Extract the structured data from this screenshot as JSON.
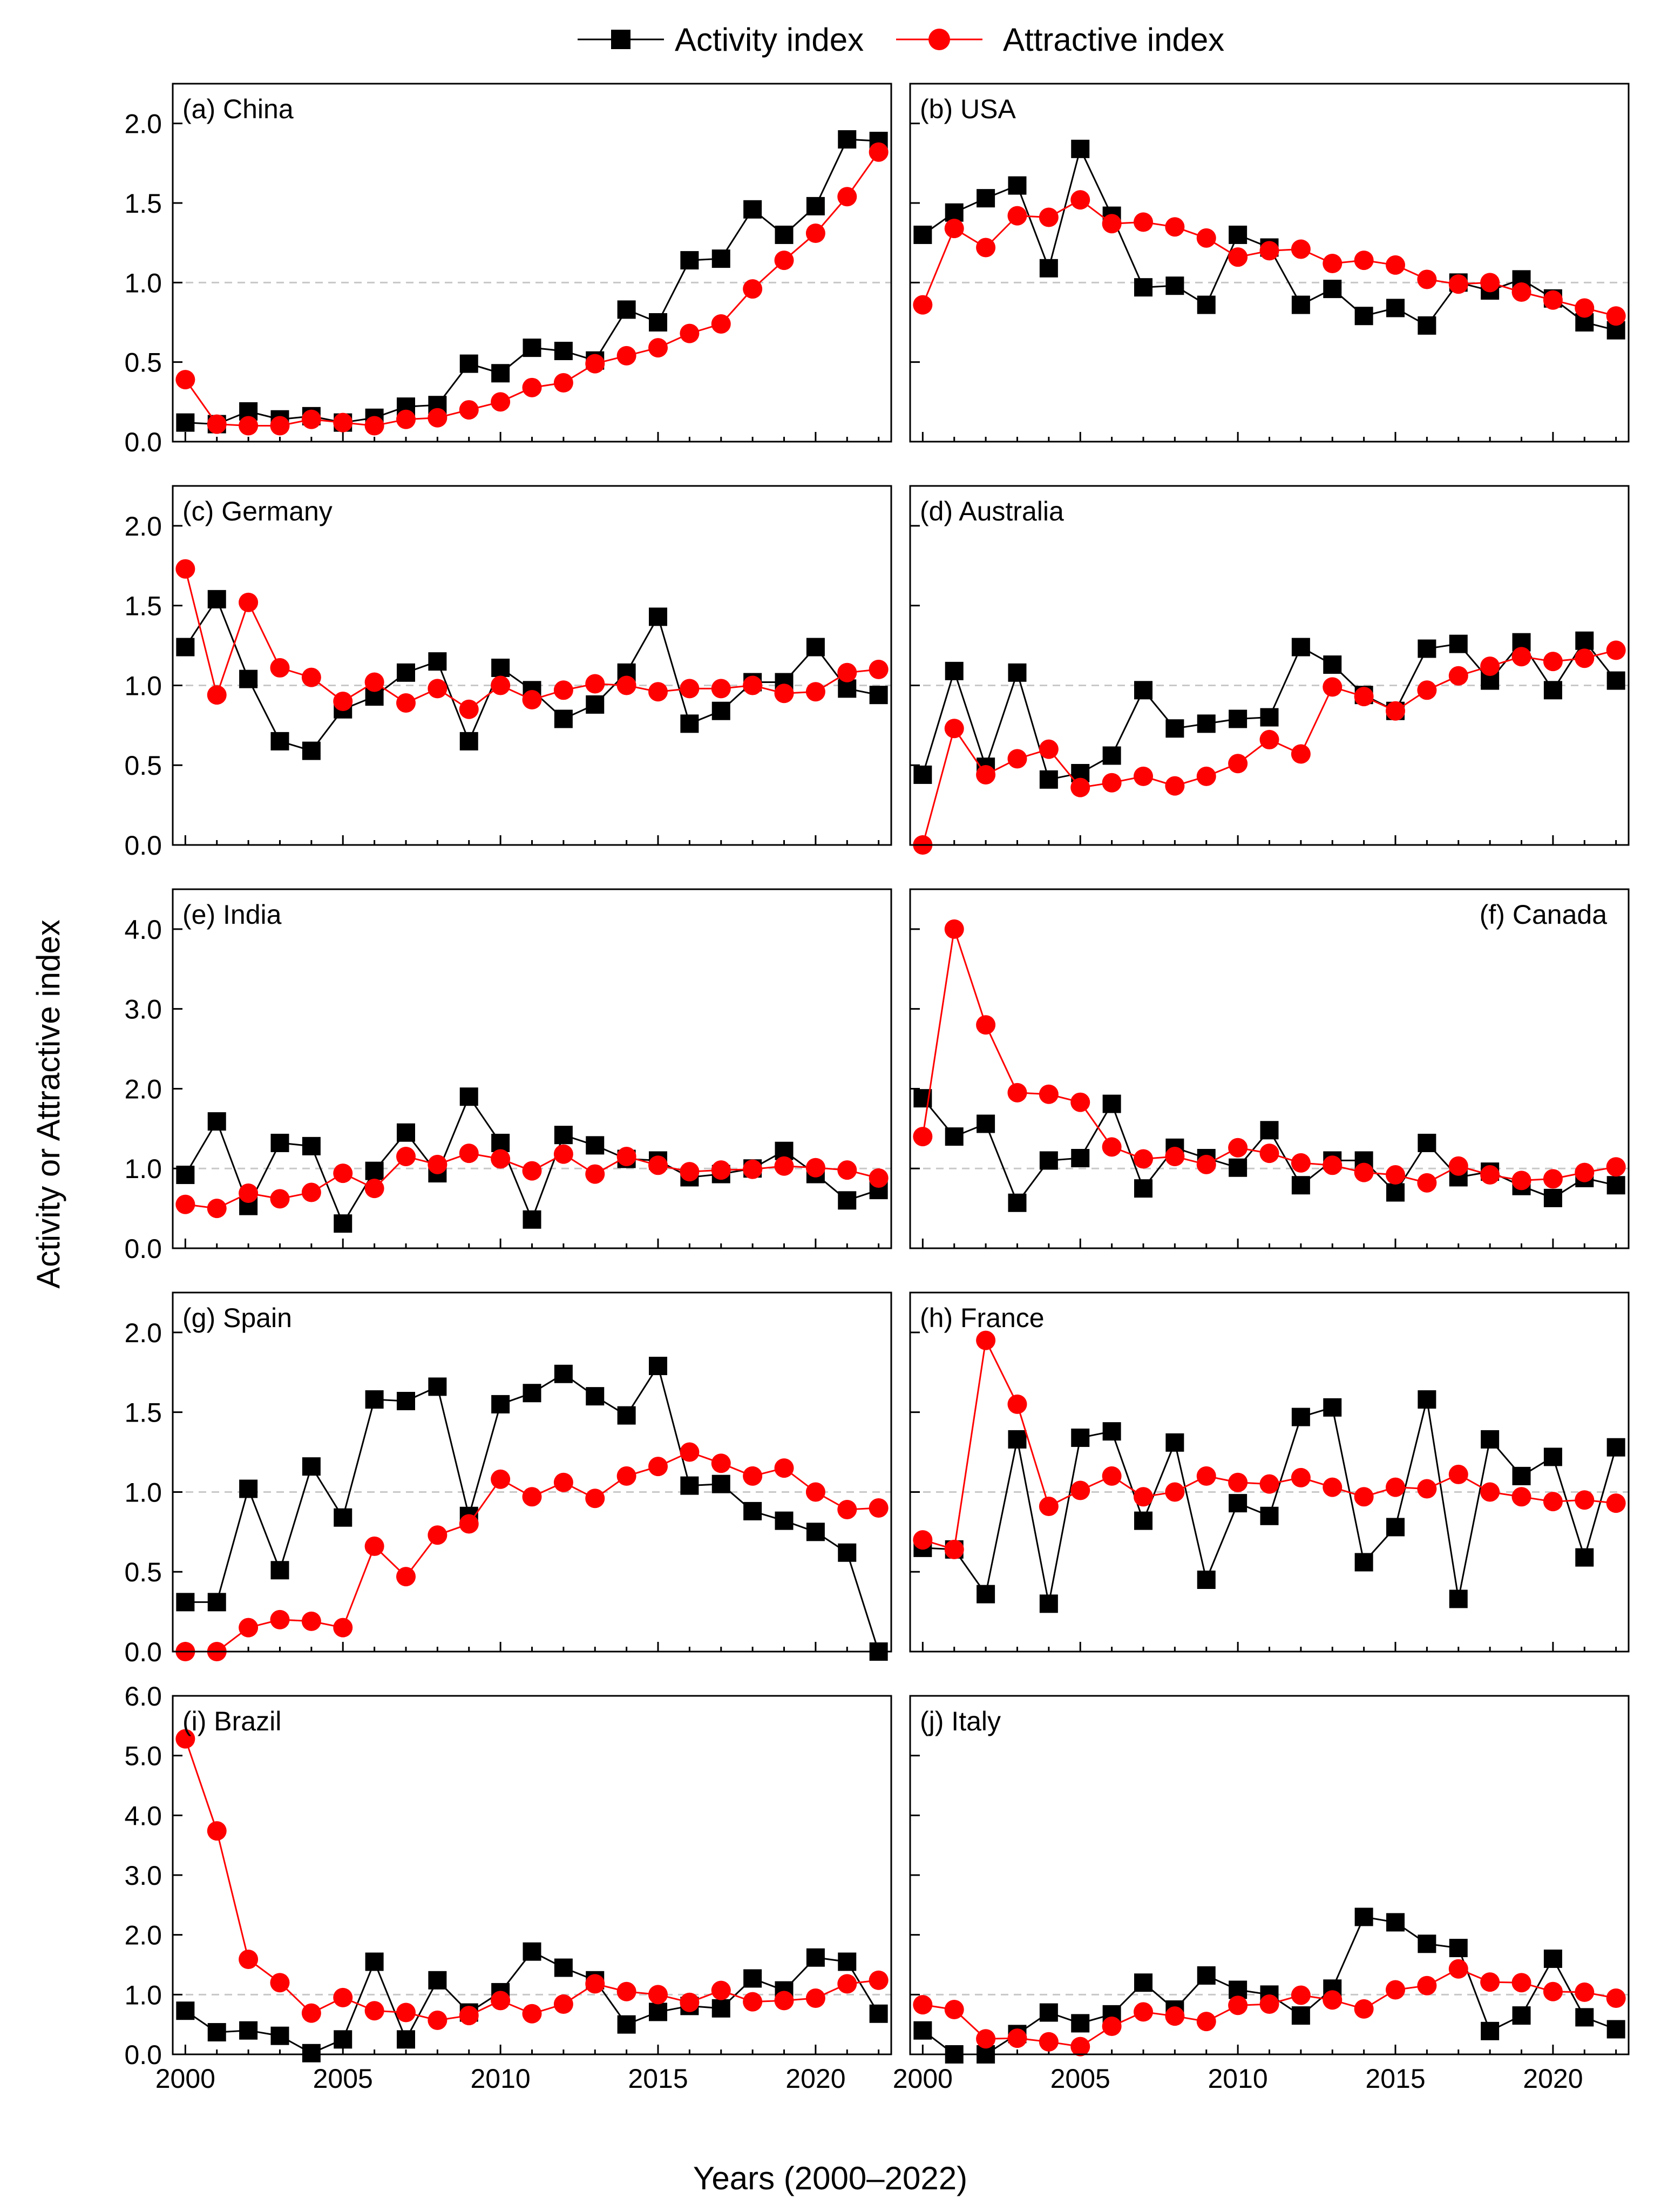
{
  "chart_data": {
    "type": "line",
    "xlabel": "Years (2000–2022)",
    "ylabel": "Activity or Attractive index",
    "legend": {
      "position": "top-center",
      "entries": [
        {
          "name": "Activity index",
          "marker": "square",
          "color": "#000000"
        },
        {
          "name": "Attractive index",
          "marker": "circle",
          "color": "#ff0000"
        }
      ]
    },
    "x": [
      2000,
      2001,
      2002,
      2003,
      2004,
      2005,
      2006,
      2007,
      2008,
      2009,
      2010,
      2011,
      2012,
      2013,
      2014,
      2015,
      2016,
      2017,
      2018,
      2019,
      2020,
      2021,
      2022
    ],
    "xlim": [
      1999.6,
      2022.4
    ],
    "xticks": [
      2000,
      2005,
      2010,
      2015,
      2020
    ],
    "reference_line": 1.0,
    "panels": [
      {
        "id": "a",
        "label": "(a) China",
        "label_pos": "left",
        "ylim": [
          0,
          2.25
        ],
        "yticks": [
          "0.0",
          "0.5",
          "1.0",
          "1.5",
          "2.0"
        ],
        "series": [
          {
            "name": "Activity index",
            "values": [
              0.12,
              0.11,
              0.19,
              0.14,
              0.16,
              0.12,
              0.15,
              0.22,
              0.23,
              0.49,
              0.43,
              0.59,
              0.57,
              0.51,
              0.83,
              0.75,
              1.14,
              1.15,
              1.46,
              1.3,
              1.48,
              1.9,
              1.89
            ]
          },
          {
            "name": "Attractive index",
            "values": [
              0.39,
              0.11,
              0.1,
              0.1,
              0.14,
              0.12,
              0.1,
              0.14,
              0.15,
              0.2,
              0.25,
              0.34,
              0.37,
              0.49,
              0.54,
              0.59,
              0.68,
              0.74,
              0.96,
              1.14,
              1.31,
              1.54,
              1.82
            ]
          }
        ]
      },
      {
        "id": "b",
        "label": "(b) USA",
        "label_pos": "left",
        "ylim": [
          0,
          2.25
        ],
        "yticks": [
          "0.0",
          "0.5",
          "1.0",
          "1.5",
          "2.0"
        ],
        "series": [
          {
            "name": "Activity index",
            "values": [
              1.3,
              1.44,
              1.53,
              1.61,
              1.09,
              1.84,
              1.42,
              0.97,
              0.98,
              0.86,
              1.3,
              1.22,
              0.86,
              0.96,
              0.79,
              0.84,
              0.73,
              1.0,
              0.95,
              1.02,
              0.9,
              0.75,
              0.7
            ]
          },
          {
            "name": "Attractive index",
            "values": [
              0.86,
              1.34,
              1.22,
              1.42,
              1.41,
              1.52,
              1.37,
              1.38,
              1.35,
              1.28,
              1.16,
              1.2,
              1.21,
              1.12,
              1.14,
              1.11,
              1.02,
              0.99,
              1.0,
              0.94,
              0.89,
              0.84,
              0.79
            ]
          }
        ]
      },
      {
        "id": "c",
        "label": "(c) Germany",
        "label_pos": "left",
        "ylim": [
          0,
          2.25
        ],
        "yticks": [
          "0.0",
          "0.5",
          "1.0",
          "1.5",
          "2.0"
        ],
        "series": [
          {
            "name": "Activity index",
            "values": [
              1.24,
              1.54,
              1.04,
              0.65,
              0.59,
              0.85,
              0.93,
              1.08,
              1.15,
              0.65,
              1.11,
              0.97,
              0.79,
              0.88,
              1.08,
              1.43,
              0.76,
              0.84,
              1.02,
              1.02,
              1.24,
              0.98,
              0.94
            ]
          },
          {
            "name": "Attractive index",
            "values": [
              1.73,
              0.94,
              1.52,
              1.11,
              1.05,
              0.9,
              1.02,
              0.89,
              0.98,
              0.85,
              1.0,
              0.91,
              0.97,
              1.01,
              1.0,
              0.96,
              0.98,
              0.98,
              1.0,
              0.95,
              0.96,
              1.08,
              1.1
            ]
          }
        ]
      },
      {
        "id": "d",
        "label": "(d) Australia",
        "label_pos": "left",
        "ylim": [
          0,
          2.25
        ],
        "yticks": [
          "0.0",
          "0.5",
          "1.0",
          "1.5",
          "2.0"
        ],
        "series": [
          {
            "name": "Activity index",
            "values": [
              0.44,
              1.09,
              0.49,
              1.08,
              0.41,
              0.45,
              0.56,
              0.97,
              0.73,
              0.76,
              0.79,
              0.8,
              1.24,
              1.13,
              0.94,
              0.84,
              1.23,
              1.26,
              1.03,
              1.27,
              0.97,
              1.28,
              1.03
            ]
          },
          {
            "name": "Attractive index",
            "values": [
              0.0,
              0.73,
              0.44,
              0.54,
              0.6,
              0.36,
              0.39,
              0.43,
              0.37,
              0.43,
              0.51,
              0.66,
              0.57,
              0.99,
              0.93,
              0.84,
              0.97,
              1.06,
              1.12,
              1.18,
              1.15,
              1.17,
              1.22
            ]
          }
        ]
      },
      {
        "id": "e",
        "label": "(e) India",
        "label_pos": "left",
        "ylim": [
          0,
          4.5
        ],
        "yticks": [
          "0.0",
          "1.0",
          "2.0",
          "3.0",
          "4.0"
        ],
        "series": [
          {
            "name": "Activity index",
            "values": [
              0.92,
              1.59,
              0.53,
              1.32,
              1.28,
              0.31,
              0.97,
              1.45,
              0.94,
              1.9,
              1.32,
              0.36,
              1.42,
              1.29,
              1.12,
              1.1,
              0.89,
              0.93,
              1.0,
              1.22,
              0.93,
              0.6,
              0.73
            ]
          },
          {
            "name": "Attractive index",
            "values": [
              0.55,
              0.5,
              0.69,
              0.62,
              0.7,
              0.94,
              0.75,
              1.15,
              1.05,
              1.19,
              1.12,
              0.97,
              1.18,
              0.93,
              1.15,
              1.04,
              0.96,
              0.98,
              0.99,
              1.03,
              1.01,
              0.98,
              0.88
            ]
          }
        ]
      },
      {
        "id": "f",
        "label": "(f) Canada",
        "label_pos": "right",
        "ylim": [
          0,
          4.5
        ],
        "yticks": [
          "0.0",
          "1.0",
          "2.0",
          "3.0",
          "4.0"
        ],
        "series": [
          {
            "name": "Activity index",
            "values": [
              1.88,
              1.4,
              1.56,
              0.57,
              1.1,
              1.13,
              1.81,
              0.75,
              1.26,
              1.13,
              1.01,
              1.48,
              0.79,
              1.1,
              1.1,
              0.7,
              1.32,
              0.89,
              0.96,
              0.78,
              0.63,
              0.88,
              0.79
            ]
          },
          {
            "name": "Attractive index",
            "values": [
              1.4,
              4.0,
              2.8,
              1.95,
              1.93,
              1.83,
              1.27,
              1.12,
              1.15,
              1.05,
              1.26,
              1.19,
              1.07,
              1.04,
              0.95,
              0.92,
              0.82,
              1.03,
              0.92,
              0.85,
              0.87,
              0.95,
              1.02
            ]
          }
        ]
      },
      {
        "id": "g",
        "label": "(g) Spain",
        "label_pos": "left",
        "ylim": [
          0,
          2.25
        ],
        "yticks": [
          "0.0",
          "0.5",
          "1.0",
          "1.5",
          "2.0"
        ],
        "series": [
          {
            "name": "Activity index",
            "values": [
              0.31,
              0.31,
              1.02,
              0.51,
              1.16,
              0.84,
              1.58,
              1.57,
              1.66,
              0.85,
              1.55,
              1.62,
              1.74,
              1.6,
              1.48,
              1.79,
              1.04,
              1.05,
              0.88,
              0.82,
              0.75,
              0.62,
              0.0
            ]
          },
          {
            "name": "Attractive index",
            "values": [
              0.0,
              0.0,
              0.15,
              0.2,
              0.19,
              0.15,
              0.66,
              0.47,
              0.73,
              0.8,
              1.08,
              0.97,
              1.06,
              0.96,
              1.1,
              1.16,
              1.25,
              1.18,
              1.1,
              1.15,
              1.0,
              0.89,
              0.9
            ]
          }
        ]
      },
      {
        "id": "h",
        "label": "(h) France",
        "label_pos": "left",
        "ylim": [
          0,
          2.25
        ],
        "yticks": [
          "0.0",
          "0.5",
          "1.0",
          "1.5",
          "2.0"
        ],
        "series": [
          {
            "name": "Activity index",
            "values": [
              0.65,
              0.64,
              0.36,
              1.33,
              0.3,
              1.34,
              1.38,
              0.82,
              1.31,
              0.45,
              0.93,
              0.85,
              1.47,
              1.53,
              0.56,
              0.78,
              1.58,
              0.33,
              1.33,
              1.1,
              1.22,
              0.59,
              1.28
            ]
          },
          {
            "name": "Attractive index",
            "values": [
              0.7,
              0.64,
              1.95,
              1.55,
              0.91,
              1.01,
              1.1,
              0.97,
              1.0,
              1.1,
              1.06,
              1.05,
              1.09,
              1.03,
              0.97,
              1.03,
              1.02,
              1.11,
              1.0,
              0.97,
              0.94,
              0.95,
              0.93
            ]
          }
        ]
      },
      {
        "id": "i",
        "label": "(i) Brazil",
        "label_pos": "left",
        "ylim": [
          0,
          6.0
        ],
        "yticks": [
          "0.0",
          "1.0",
          "2.0",
          "3.0",
          "4.0",
          "5.0",
          "6.0"
        ],
        "series": [
          {
            "name": "Activity index",
            "values": [
              0.73,
              0.37,
              0.4,
              0.31,
              0.02,
              0.25,
              1.55,
              0.25,
              1.24,
              0.7,
              1.04,
              1.72,
              1.45,
              1.24,
              0.5,
              0.71,
              0.81,
              0.77,
              1.27,
              1.07,
              1.62,
              1.55,
              0.68
            ]
          },
          {
            "name": "Attractive index",
            "values": [
              5.28,
              3.74,
              1.59,
              1.2,
              0.69,
              0.95,
              0.73,
              0.7,
              0.57,
              0.65,
              0.9,
              0.68,
              0.84,
              1.18,
              1.05,
              1.0,
              0.87,
              1.07,
              0.88,
              0.9,
              0.94,
              1.18,
              1.24
            ]
          }
        ]
      },
      {
        "id": "j",
        "label": "(j) Italy",
        "label_pos": "left",
        "ylim": [
          0,
          6.0
        ],
        "yticks": [
          "0.0",
          "1.0",
          "2.0",
          "3.0",
          "4.0",
          "5.0",
          "6.0"
        ],
        "series": [
          {
            "name": "Activity index",
            "values": [
              0.4,
              0.0,
              0.0,
              0.34,
              0.7,
              0.52,
              0.67,
              1.2,
              0.75,
              1.32,
              1.08,
              1.0,
              0.65,
              1.1,
              2.3,
              2.21,
              1.85,
              1.78,
              0.39,
              0.65,
              1.6,
              0.62,
              0.42
            ]
          },
          {
            "name": "Attractive index",
            "values": [
              0.83,
              0.75,
              0.26,
              0.27,
              0.21,
              0.13,
              0.47,
              0.71,
              0.64,
              0.55,
              0.82,
              0.84,
              0.99,
              0.91,
              0.76,
              1.08,
              1.15,
              1.43,
              1.21,
              1.2,
              1.05,
              1.04,
              0.94
            ]
          }
        ]
      }
    ]
  }
}
